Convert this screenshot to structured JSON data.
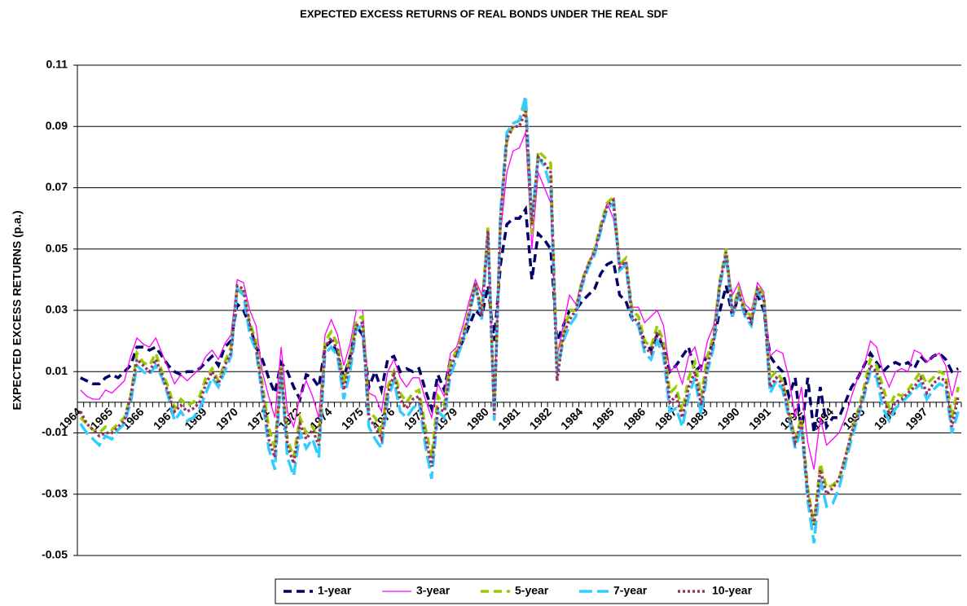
{
  "chart_data": {
    "type": "line",
    "title": "EXPECTED EXCESS RETURNS OF REAL BONDS UNDER THE REAL SDF",
    "y_label": "EXPECTED EXCESS RETURNS (p.a.)",
    "ylim": [
      -0.05,
      0.11
    ],
    "yticks": [
      -0.05,
      -0.03,
      -0.01,
      0.01,
      0.03,
      0.05,
      0.07,
      0.09,
      0.11
    ],
    "grid": true,
    "legend": "bottom",
    "categories": [
      "1964",
      null,
      null,
      null,
      null,
      "1965",
      null,
      null,
      null,
      null,
      "1966",
      null,
      null,
      null,
      null,
      "1967",
      null,
      null,
      null,
      null,
      "1969",
      null,
      null,
      null,
      null,
      "1970",
      null,
      null,
      null,
      null,
      "1971",
      null,
      null,
      null,
      null,
      "1972",
      null,
      null,
      null,
      null,
      "1974",
      null,
      null,
      null,
      null,
      "1975",
      null,
      null,
      null,
      null,
      "1976",
      null,
      null,
      null,
      null,
      "1977",
      null,
      null,
      null,
      null,
      "1979",
      null,
      null,
      null,
      null,
      "1980",
      null,
      null,
      null,
      null,
      "1981",
      null,
      null,
      null,
      null,
      "1982",
      null,
      null,
      null,
      null,
      "1984",
      null,
      null,
      null,
      null,
      "1985",
      null,
      null,
      null,
      null,
      "1986",
      null,
      null,
      null,
      null,
      "1987",
      null,
      null,
      null,
      null,
      "1989",
      null,
      null,
      null,
      null,
      "1990",
      null,
      null,
      null,
      null,
      "1991",
      null,
      null,
      null,
      null,
      "1992",
      null,
      null,
      null,
      null,
      "1994",
      null,
      null,
      null,
      null,
      "1995",
      null,
      null,
      null,
      null,
      "1996",
      null,
      null,
      null,
      null,
      "1997",
      null,
      null,
      null,
      null,
      null
    ],
    "series": [
      {
        "name": "1-year",
        "color": "#000066",
        "style": "dash",
        "values": [
          0.008,
          0.007,
          0.006,
          0.006,
          0.008,
          0.009,
          0.008,
          0.01,
          0.012,
          0.018,
          0.018,
          0.017,
          0.018,
          0.015,
          0.012,
          0.01,
          0.009,
          0.01,
          0.01,
          0.011,
          0.013,
          0.015,
          0.012,
          0.018,
          0.02,
          0.032,
          0.03,
          0.025,
          0.018,
          0.014,
          0.008,
          0.003,
          0.013,
          0.01,
          0.005,
          0.001,
          0.009,
          0.008,
          0.005,
          0.018,
          0.02,
          0.016,
          0.008,
          0.015,
          0.025,
          0.022,
          0.005,
          0.01,
          0.004,
          0.014,
          0.015,
          0.01,
          0.011,
          0.01,
          0.011,
          0.004,
          -0.002,
          0.009,
          0.004,
          0.014,
          0.016,
          0.02,
          0.025,
          0.03,
          0.028,
          0.038,
          0.02,
          0.045,
          0.058,
          0.06,
          0.06,
          0.063,
          0.04,
          0.055,
          0.053,
          0.05,
          0.02,
          0.025,
          0.03,
          0.03,
          0.033,
          0.035,
          0.037,
          0.042,
          0.045,
          0.046,
          0.035,
          0.033,
          0.027,
          0.025,
          0.02,
          0.017,
          0.022,
          0.018,
          0.01,
          0.012,
          0.015,
          0.018,
          0.01,
          0.012,
          0.015,
          0.02,
          0.03,
          0.038,
          0.028,
          0.035,
          0.03,
          0.027,
          0.035,
          0.03,
          0.015,
          0.012,
          0.01,
          0.002,
          0.008,
          -0.01,
          0.008,
          -0.01,
          0.005,
          -0.008,
          -0.005,
          -0.005,
          0,
          0.005,
          0.008,
          0.012,
          0.016,
          0.013,
          0.01,
          0.012,
          0.013,
          0.012,
          0.013,
          0.011,
          0.015,
          0.013,
          0.015,
          0.016,
          0.014,
          0.01,
          0.011
        ]
      },
      {
        "name": "3-year",
        "color": "#ff00ff",
        "style": "solid",
        "values": [
          0.004,
          0.002,
          0.001,
          0.001,
          0.004,
          0.003,
          0.005,
          0.007,
          0.015,
          0.021,
          0.019,
          0.018,
          0.021,
          0.016,
          0.011,
          0.006,
          0.009,
          0.007,
          0.009,
          0.011,
          0.015,
          0.017,
          0.014,
          0.019,
          0.022,
          0.04,
          0.039,
          0.03,
          0.025,
          0.01,
          0.002,
          -0.005,
          0.018,
          -0.003,
          -0.008,
          0.002,
          0.007,
          0.002,
          -0.005,
          0.022,
          0.027,
          0.022,
          0.012,
          0.019,
          0.03,
          0.03,
          0.003,
          0.002,
          -0.003,
          0.01,
          0.014,
          0.008,
          0.005,
          0.008,
          0.008,
          0.001,
          -0.005,
          0.006,
          0.002,
          0.016,
          0.018,
          0.025,
          0.033,
          0.04,
          0.035,
          0.05,
          0.002,
          0.055,
          0.075,
          0.082,
          0.083,
          0.088,
          0.05,
          0.075,
          0.07,
          0.065,
          0.015,
          0.025,
          0.035,
          0.032,
          0.04,
          0.045,
          0.05,
          0.056,
          0.065,
          0.06,
          0.045,
          0.045,
          0.031,
          0.031,
          0.026,
          0.028,
          0.03,
          0.025,
          0.01,
          0.012,
          0.006,
          0.015,
          0.018,
          0.01,
          0.02,
          0.025,
          0.04,
          0.048,
          0.035,
          0.039,
          0.032,
          0.03,
          0.039,
          0.036,
          0.015,
          0.017,
          0.016,
          0.008,
          -0.005,
          0.005,
          -0.013,
          -0.022,
          -0.005,
          -0.014,
          -0.012,
          -0.01,
          -0.005,
          0.002,
          0.008,
          0.012,
          0.02,
          0.018,
          0.01,
          0.005,
          0.01,
          0.011,
          0.01,
          0.017,
          0.016,
          0.013,
          0.015,
          0.016,
          0.012,
          0.002,
          0.01
        ]
      },
      {
        "name": "5-year",
        "color": "#99cc00",
        "style": "dash",
        "values": [
          -0.005,
          -0.007,
          -0.009,
          -0.01,
          -0.008,
          -0.009,
          -0.007,
          -0.005,
          0.002,
          0.016,
          0.013,
          0.012,
          0.016,
          0.01,
          0.005,
          -0.002,
          0.001,
          -0.001,
          0,
          0.002,
          0.008,
          0.011,
          0.007,
          0.013,
          0.018,
          0.037,
          0.036,
          0.026,
          0.02,
          0.006,
          -0.008,
          -0.015,
          0.012,
          -0.012,
          -0.018,
          -0.005,
          -0.01,
          -0.008,
          -0.012,
          0.02,
          0.023,
          0.019,
          0.006,
          0.015,
          0.027,
          0.028,
          -0.003,
          -0.005,
          -0.01,
          0.005,
          0.01,
          0.003,
          0,
          0.003,
          0.004,
          -0.008,
          -0.018,
          0.002,
          -0.001,
          0.013,
          0.017,
          0.022,
          0.03,
          0.039,
          0.03,
          0.057,
          -0.003,
          0.06,
          0.085,
          0.09,
          0.092,
          0.097,
          0.055,
          0.082,
          0.08,
          0.078,
          0.012,
          0.022,
          0.03,
          0.03,
          0.04,
          0.045,
          0.05,
          0.058,
          0.065,
          0.067,
          0.045,
          0.047,
          0.03,
          0.028,
          0.02,
          0.018,
          0.025,
          0.02,
          0.003,
          0.005,
          -0.003,
          0.008,
          0.013,
          0.002,
          0.015,
          0.022,
          0.04,
          0.05,
          0.03,
          0.037,
          0.03,
          0.028,
          0.038,
          0.035,
          0.008,
          0.01,
          0.007,
          -0.003,
          -0.012,
          -0.005,
          -0.028,
          -0.04,
          -0.02,
          -0.028,
          -0.027,
          -0.025,
          -0.018,
          -0.01,
          -0.003,
          0.005,
          0.014,
          0.012,
          0.005,
          -0.002,
          0.003,
          0.002,
          0.004,
          0.007,
          0.01,
          0.006,
          0.008,
          0.01,
          0.009,
          -0.005,
          0.005
        ]
      },
      {
        "name": "7-year",
        "color": "#33ccff",
        "style": "longdash",
        "values": [
          -0.007,
          -0.01,
          -0.012,
          -0.014,
          -0.011,
          -0.012,
          -0.009,
          -0.007,
          0,
          0.012,
          0.01,
          0.009,
          0.012,
          0.008,
          0.002,
          -0.006,
          -0.003,
          -0.006,
          -0.005,
          -0.002,
          0.003,
          0.008,
          0.005,
          0.01,
          0.015,
          0.037,
          0.035,
          0.022,
          0.017,
          0.002,
          -0.015,
          -0.022,
          0.01,
          -0.018,
          -0.024,
          -0.01,
          -0.015,
          -0.012,
          -0.018,
          0.016,
          0.018,
          0.015,
          0.001,
          0.01,
          0.024,
          0.025,
          -0.008,
          -0.012,
          -0.015,
          0.001,
          0.007,
          -0.003,
          -0.005,
          -0.002,
          0,
          -0.014,
          -0.025,
          -0.003,
          -0.005,
          0.009,
          0.014,
          0.02,
          0.028,
          0.038,
          0.027,
          0.055,
          -0.006,
          0.062,
          0.088,
          0.091,
          0.092,
          0.1,
          0.06,
          0.08,
          0.077,
          0.07,
          0.01,
          0.02,
          0.025,
          0.028,
          0.038,
          0.044,
          0.048,
          0.056,
          0.063,
          0.065,
          0.043,
          0.045,
          0.027,
          0.025,
          0.016,
          0.014,
          0.02,
          0.015,
          -0.003,
          -0.002,
          -0.008,
          0.002,
          0.008,
          -0.004,
          0.01,
          0.018,
          0.038,
          0.048,
          0.028,
          0.035,
          0.028,
          0.025,
          0.036,
          0.033,
          0.003,
          0.007,
          0.004,
          -0.005,
          -0.015,
          -0.008,
          -0.032,
          -0.046,
          -0.025,
          -0.034,
          -0.033,
          -0.028,
          -0.02,
          -0.012,
          -0.005,
          0.002,
          0.01,
          0.008,
          -0.002,
          -0.006,
          -0.002,
          0,
          0.002,
          0.004,
          0.006,
          0.001,
          0.004,
          0.006,
          0.005,
          -0.01,
          -0.003
        ]
      },
      {
        "name": "10-year",
        "color": "#993366",
        "style": "dot",
        "values": [
          -0.003,
          -0.007,
          -0.009,
          -0.011,
          -0.01,
          -0.01,
          -0.008,
          -0.006,
          0.002,
          0.014,
          0.012,
          0.01,
          0.014,
          0.009,
          0.003,
          -0.003,
          -0.001,
          -0.003,
          -0.002,
          0,
          0.006,
          0.01,
          0.006,
          0.012,
          0.016,
          0.038,
          0.037,
          0.025,
          0.018,
          0.004,
          -0.012,
          -0.018,
          0.011,
          -0.014,
          -0.02,
          -0.007,
          -0.012,
          -0.009,
          -0.014,
          0.018,
          0.021,
          0.017,
          0.004,
          0.013,
          0.025,
          0.026,
          -0.005,
          -0.008,
          -0.012,
          0.003,
          0.009,
          0.001,
          -0.002,
          0.001,
          0.002,
          -0.011,
          -0.021,
          -0.002,
          -0.003,
          0.011,
          0.016,
          0.021,
          0.029,
          0.039,
          0.028,
          0.056,
          -0.004,
          0.06,
          0.086,
          0.09,
          0.09,
          0.095,
          0.058,
          0.08,
          0.078,
          0.075,
          0.007,
          0.022,
          0.027,
          0.03,
          0.039,
          0.045,
          0.049,
          0.057,
          0.064,
          0.066,
          0.044,
          0.046,
          0.028,
          0.026,
          0.018,
          0.016,
          0.023,
          0.018,
          0,
          0.002,
          -0.005,
          0.005,
          0.01,
          -0.001,
          0.012,
          0.02,
          0.039,
          0.049,
          0.029,
          0.036,
          0.029,
          0.026,
          0.037,
          0.034,
          0.005,
          0.008,
          0.006,
          -0.004,
          -0.013,
          -0.006,
          -0.03,
          -0.04,
          -0.022,
          -0.03,
          -0.028,
          -0.025,
          -0.018,
          -0.01,
          -0.004,
          0.003,
          0.012,
          0.01,
          0.002,
          -0.004,
          0,
          0.001,
          0.003,
          0.005,
          0.008,
          0.003,
          0.006,
          0.008,
          0.007,
          -0.008,
          0.002
        ]
      }
    ]
  }
}
